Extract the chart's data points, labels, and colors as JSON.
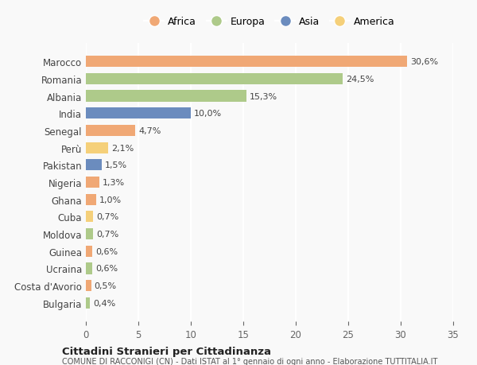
{
  "countries": [
    "Marocco",
    "Romania",
    "Albania",
    "India",
    "Senegal",
    "Perù",
    "Pakistan",
    "Nigeria",
    "Ghana",
    "Cuba",
    "Moldova",
    "Guinea",
    "Ucraina",
    "Costa d'Avorio",
    "Bulgaria"
  ],
  "values": [
    30.6,
    24.5,
    15.3,
    10.0,
    4.7,
    2.1,
    1.5,
    1.3,
    1.0,
    0.7,
    0.7,
    0.6,
    0.6,
    0.5,
    0.4
  ],
  "labels": [
    "30,6%",
    "24,5%",
    "15,3%",
    "10,0%",
    "4,7%",
    "2,1%",
    "1,5%",
    "1,3%",
    "1,0%",
    "0,7%",
    "0,7%",
    "0,6%",
    "0,6%",
    "0,5%",
    "0,4%"
  ],
  "regions": [
    "Africa",
    "Europa",
    "Europa",
    "Asia",
    "Africa",
    "America",
    "Asia",
    "Africa",
    "Africa",
    "America",
    "Europa",
    "Africa",
    "Europa",
    "Africa",
    "Europa"
  ],
  "region_colors": {
    "Africa": "#F0A875",
    "Europa": "#AECA8A",
    "Asia": "#6B8CBE",
    "America": "#F5D07A"
  },
  "legend_order": [
    "Africa",
    "Europa",
    "Asia",
    "America"
  ],
  "title": "Cittadini Stranieri per Cittadinanza",
  "subtitle": "COMUNE DI RACCONIGI (CN) - Dati ISTAT al 1° gennaio di ogni anno - Elaborazione TUTTITALIA.IT",
  "xlim": [
    0,
    35
  ],
  "xticks": [
    0,
    5,
    10,
    15,
    20,
    25,
    30,
    35
  ],
  "bg_color": "#f9f9f9",
  "grid_color": "#ffffff",
  "bar_height": 0.65
}
